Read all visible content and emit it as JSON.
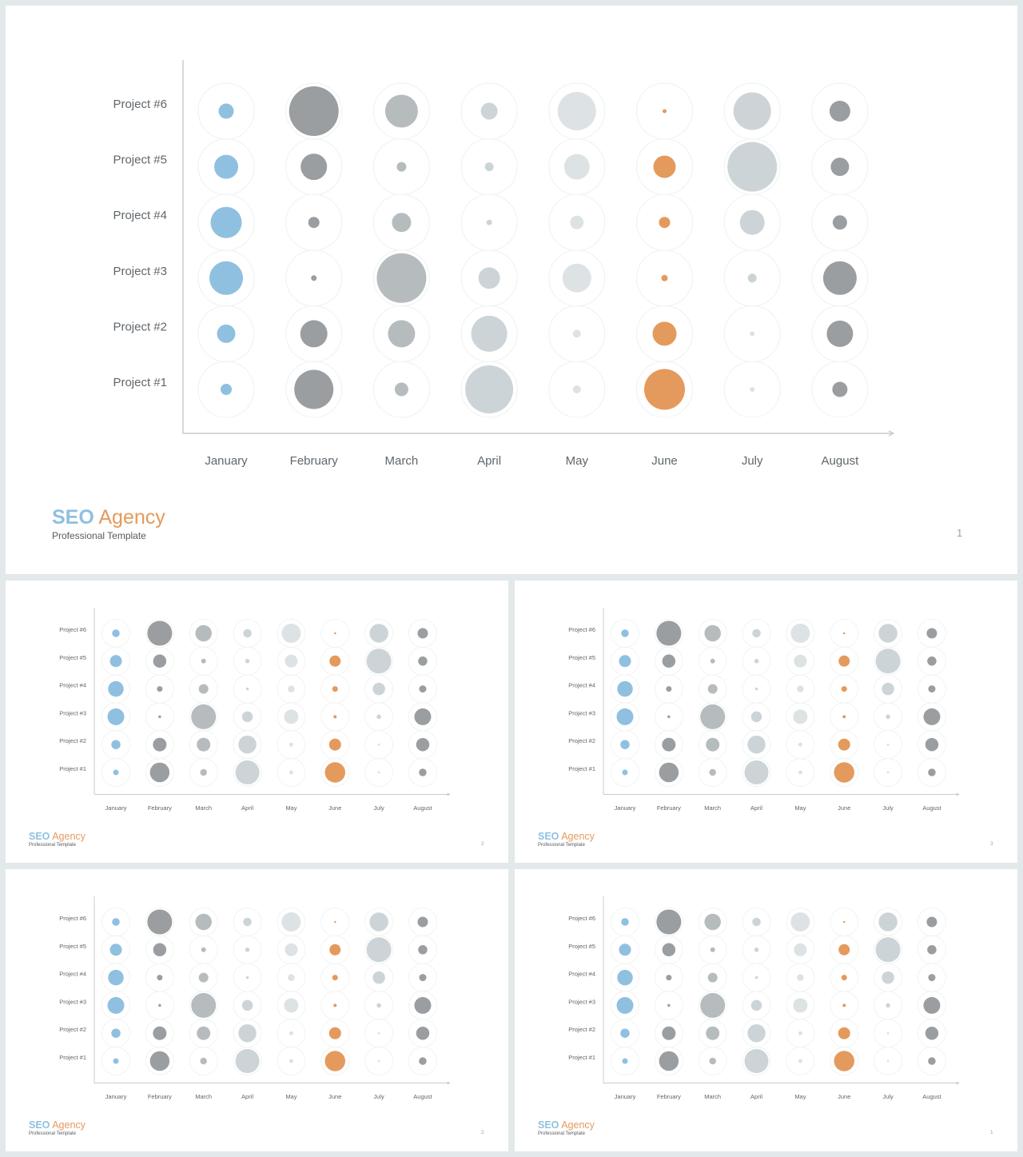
{
  "brand": {
    "seo": "SEO",
    "agency": "Agency",
    "subtitle": "Professional Template"
  },
  "slides": [
    {
      "page": "1"
    },
    {
      "page": "2"
    },
    {
      "page": "3"
    },
    {
      "page": "2"
    },
    {
      "page": "1"
    }
  ],
  "colors": {
    "blue": "#8fc0e0",
    "orange": "#e49a5c",
    "dark_gray": "#9a9ea1",
    "mid_gray": "#b6bcbe",
    "light_gray": "#cdd4d7",
    "pale_gray": "#dde3e5",
    "guide_circle": "#f1f3f4",
    "axis": "#c7ccd0"
  },
  "chart_data": {
    "type": "bubble",
    "title": "",
    "xlabel": "",
    "ylabel": "",
    "categories": [
      "January",
      "February",
      "March",
      "April",
      "May",
      "June",
      "July",
      "August"
    ],
    "series": [
      {
        "name": "Project #1",
        "values": [
          14,
          49,
          17,
          60,
          10,
          51,
          6,
          19
        ],
        "colors": [
          "blue",
          "dark_gray",
          "mid_gray",
          "light_gray",
          "pale_gray",
          "orange",
          "pale_gray",
          "dark_gray"
        ]
      },
      {
        "name": "Project #2",
        "values": [
          23,
          34,
          34,
          45,
          10,
          30,
          6,
          33
        ],
        "colors": [
          "blue",
          "dark_gray",
          "mid_gray",
          "light_gray",
          "pale_gray",
          "orange",
          "pale_gray",
          "dark_gray"
        ]
      },
      {
        "name": "Project #3",
        "values": [
          42,
          7,
          62,
          27,
          36,
          8,
          11,
          42
        ],
        "colors": [
          "blue",
          "dark_gray",
          "mid_gray",
          "light_gray",
          "pale_gray",
          "orange",
          "light_gray",
          "dark_gray"
        ]
      },
      {
        "name": "Project #4",
        "values": [
          39,
          14,
          24,
          7,
          17,
          14,
          31,
          18
        ],
        "colors": [
          "blue",
          "dark_gray",
          "mid_gray",
          "light_gray",
          "pale_gray",
          "orange",
          "light_gray",
          "dark_gray"
        ]
      },
      {
        "name": "Project #5",
        "values": [
          30,
          33,
          12,
          11,
          32,
          28,
          62,
          23
        ],
        "colors": [
          "blue",
          "dark_gray",
          "mid_gray",
          "light_gray",
          "pale_gray",
          "orange",
          "light_gray",
          "dark_gray"
        ]
      },
      {
        "name": "Project #6",
        "values": [
          19,
          62,
          41,
          21,
          48,
          5,
          47,
          26
        ],
        "colors": [
          "blue",
          "dark_gray",
          "mid_gray",
          "light_gray",
          "pale_gray",
          "orange",
          "light_gray",
          "dark_gray"
        ]
      }
    ]
  }
}
